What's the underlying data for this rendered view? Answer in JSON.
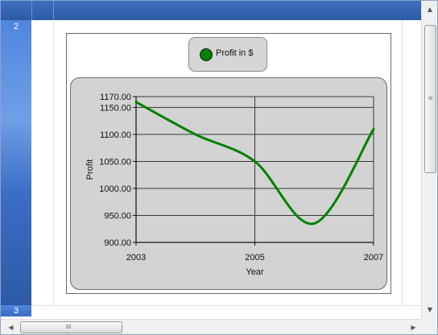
{
  "rows": {
    "row2": "2",
    "row3": "3"
  },
  "scrollbar": {
    "up_arrow": "▲",
    "down_arrow": "▼",
    "left_arrow": "◀",
    "right_arrow": "▶",
    "grip_v": "≡",
    "grip_h": "III"
  },
  "chart_data": {
    "type": "line",
    "title": "",
    "xlabel": "Year",
    "ylabel": "Profit",
    "x_ticks": [
      "2003",
      "2005",
      "2007"
    ],
    "y_ticks": [
      "1170.00",
      "1150.00",
      "1100.00",
      "1050.00",
      "1000.00",
      "950.00",
      "900.00"
    ],
    "xlim": [
      2003,
      2007
    ],
    "ylim": [
      900,
      1170
    ],
    "grid": true,
    "legend_position": "top-center",
    "series": [
      {
        "name": "Profit in $",
        "color": "#008000",
        "x": [
          2003,
          2004,
          2005,
          2006,
          2007
        ],
        "values": [
          1160,
          1100,
          1050,
          935,
          1110
        ]
      }
    ]
  }
}
